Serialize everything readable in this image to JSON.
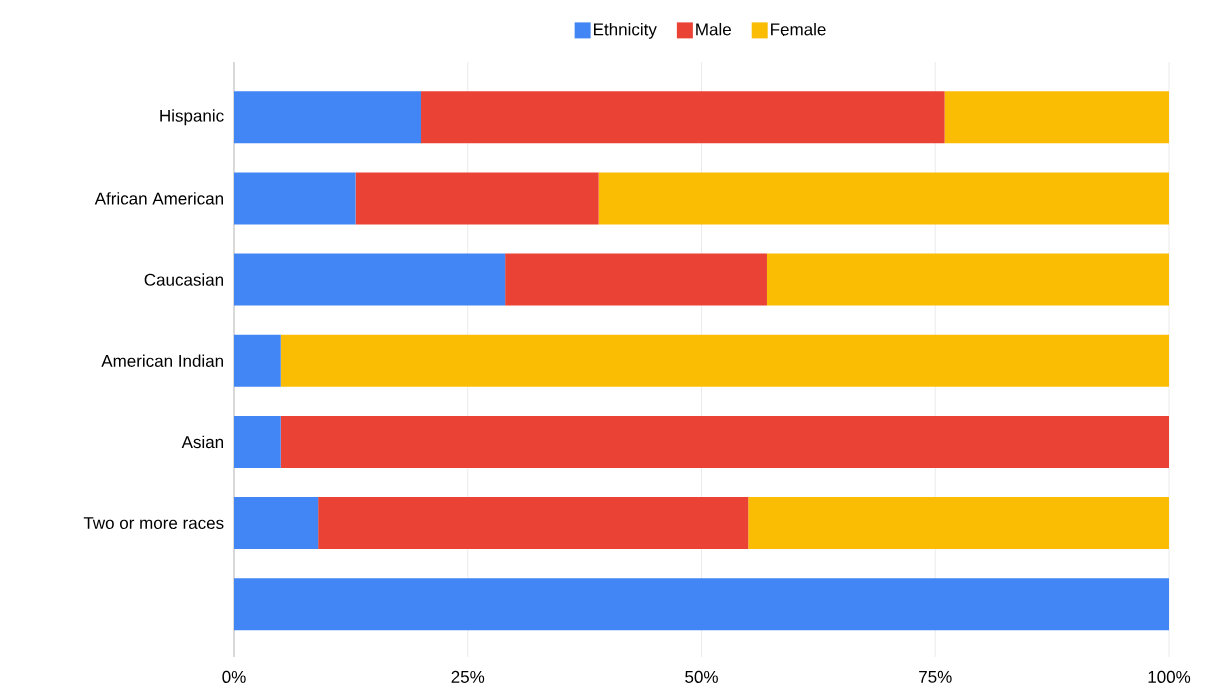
{
  "chart_data": {
    "type": "bar",
    "orientation": "horizontal",
    "stacked": true,
    "categories": [
      "Hispanic",
      "African American",
      "Caucasian",
      "American Indian",
      "Asian",
      "Two or more races",
      null
    ],
    "series": [
      {
        "name": "Ethnicity",
        "color": "#4285f4",
        "values": [
          20,
          13,
          29,
          5,
          5,
          9,
          100
        ]
      },
      {
        "name": "Male",
        "color": "#ea4335",
        "values": [
          56,
          26,
          28,
          0,
          95,
          46,
          0
        ]
      },
      {
        "name": "Female",
        "color": "#fbbc04",
        "values": [
          24,
          61,
          43,
          95,
          0,
          45,
          0
        ]
      }
    ],
    "xlim": [
      0,
      100
    ],
    "xticks": [
      {
        "value": 0,
        "label": "0%"
      },
      {
        "value": 25,
        "label": "25%"
      },
      {
        "value": 50,
        "label": "50%"
      },
      {
        "value": 75,
        "label": "75%"
      },
      {
        "value": 100,
        "label": "100%"
      }
    ],
    "grid": "x",
    "legend": "top"
  }
}
